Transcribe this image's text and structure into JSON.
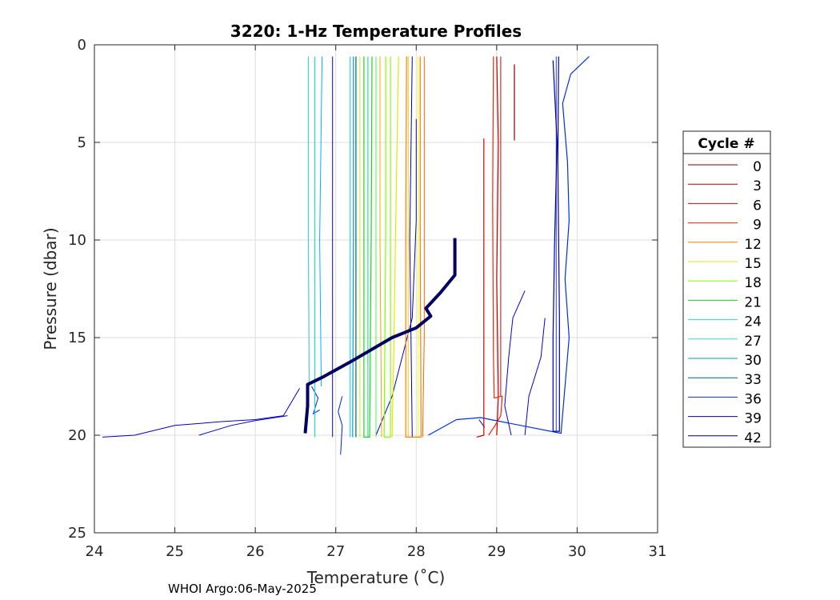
{
  "chart_data": {
    "type": "line",
    "title": "3220: 1-Hz Temperature Profiles",
    "xlabel": "Temperature (˚C)",
    "ylabel": "Pressure (dbar)",
    "xlim": [
      24,
      31
    ],
    "ylim": [
      0,
      25
    ],
    "y_reversed": true,
    "x_ticks": [
      "24",
      "25",
      "26",
      "27",
      "28",
      "29",
      "30",
      "31"
    ],
    "y_ticks": [
      "0",
      "5",
      "10",
      "15",
      "20",
      "25"
    ],
    "grid": true,
    "legend_title": "Cycle #",
    "legend_position": "right",
    "footer": "WHOI Argo:06-May-2025",
    "series": [
      {
        "name": "0",
        "color": "#800000",
        "points": [
          [
            29.22,
            1.0
          ],
          [
            29.22,
            4.9
          ]
        ]
      },
      {
        "name": "3",
        "color": "#b00000",
        "points": [
          [
            29.0,
            0.6
          ],
          [
            29.02,
            5
          ],
          [
            29.0,
            12
          ],
          [
            29.02,
            18
          ],
          [
            29.0,
            20
          ]
        ]
      },
      {
        "name": "6",
        "color": "#d40000",
        "points": [
          [
            28.84,
            4.8
          ],
          [
            28.84,
            12
          ],
          [
            28.84,
            20
          ],
          [
            28.75,
            20.1
          ]
        ]
      },
      {
        "name": "9",
        "color": "#ff2000",
        "points": [
          [
            28.96,
            0.6
          ],
          [
            28.95,
            8
          ],
          [
            28.96,
            16
          ],
          [
            28.97,
            18.1
          ],
          [
            29.07,
            18.0
          ],
          [
            29.05,
            19.0
          ],
          [
            28.98,
            19.5
          ],
          [
            28.9,
            20
          ]
        ]
      },
      {
        "name": "12",
        "color": "#ff8000",
        "points": [
          [
            28.05,
            0.6
          ],
          [
            28.05,
            10
          ],
          [
            28.06,
            20.1
          ],
          [
            27.87,
            20.1
          ],
          [
            27.87,
            10
          ],
          [
            27.88,
            0.6
          ]
        ]
      },
      {
        "name": "15",
        "color": "#e6e600",
        "points": [
          [
            27.78,
            0.6
          ],
          [
            27.75,
            8
          ],
          [
            27.72,
            16
          ],
          [
            27.7,
            20.1
          ]
        ]
      },
      {
        "name": "18",
        "color": "#80ff00",
        "points": [
          [
            27.62,
            0.6
          ],
          [
            27.62,
            10
          ],
          [
            27.6,
            20.1
          ],
          [
            27.68,
            20.1
          ],
          [
            27.68,
            0.6
          ]
        ]
      },
      {
        "name": "21",
        "color": "#20d020",
        "points": [
          [
            27.45,
            0.6
          ],
          [
            27.44,
            10
          ],
          [
            27.42,
            20.1
          ],
          [
            27.35,
            20.1
          ],
          [
            27.35,
            0.6
          ]
        ]
      },
      {
        "name": "24",
        "color": "#20e0c0",
        "points": [
          [
            26.74,
            0.6
          ],
          [
            26.74,
            10
          ],
          [
            26.74,
            20.1
          ]
        ]
      },
      {
        "name": "27",
        "color": "#40d0e0",
        "points": [
          [
            26.66,
            0.6
          ],
          [
            26.66,
            10
          ],
          [
            26.67,
            17.5
          ]
        ]
      },
      {
        "name": "30",
        "color": "#00a0c0",
        "points": [
          [
            27.22,
            0.6
          ],
          [
            27.22,
            10
          ],
          [
            27.21,
            20.1
          ]
        ]
      },
      {
        "name": "33",
        "color": "#006080",
        "points": [
          [
            27.25,
            0.6
          ],
          [
            27.25,
            10
          ],
          [
            27.25,
            20.1
          ]
        ]
      },
      {
        "name": "36",
        "color": "#0030e0",
        "points": [
          [
            30.15,
            0.6
          ],
          [
            29.92,
            1.5
          ],
          [
            29.82,
            3
          ],
          [
            29.88,
            6
          ],
          [
            29.9,
            9
          ],
          [
            29.85,
            12
          ],
          [
            29.9,
            15
          ],
          [
            29.8,
            19.9
          ],
          [
            28.8,
            19.1
          ],
          [
            28.5,
            19.2
          ],
          [
            28.15,
            20
          ]
        ]
      },
      {
        "name": "39",
        "color": "#0000a0",
        "points": [
          [
            29.7,
            0.8
          ],
          [
            29.75,
            5
          ],
          [
            29.72,
            10
          ],
          [
            29.7,
            15
          ],
          [
            29.7,
            19.8
          ],
          [
            29.78,
            19.8
          ],
          [
            29.78,
            14
          ],
          [
            29.76,
            6
          ],
          [
            29.77,
            0.6
          ]
        ]
      },
      {
        "name": "42",
        "color": "#000060",
        "points": [
          [
            28.48,
            9.9
          ],
          [
            28.48,
            11.8
          ],
          [
            28.3,
            12.7
          ],
          [
            28.12,
            13.5
          ],
          [
            28.18,
            13.9
          ],
          [
            28.0,
            14.5
          ],
          [
            27.7,
            15.0
          ],
          [
            27.2,
            16.2
          ],
          [
            26.85,
            17.0
          ],
          [
            26.65,
            17.4
          ],
          [
            26.65,
            18.5
          ],
          [
            26.62,
            19.9
          ]
        ]
      }
    ],
    "extra_traces": [
      {
        "color": "#0000cc",
        "points": [
          [
            24.1,
            20.1
          ],
          [
            24.5,
            20.0
          ],
          [
            25.0,
            19.5
          ],
          [
            25.6,
            19.3
          ],
          [
            26.0,
            19.2
          ],
          [
            26.35,
            19.0
          ],
          [
            26.55,
            17.6
          ]
        ]
      },
      {
        "color": "#0000cc",
        "points": [
          [
            25.3,
            20.0
          ],
          [
            25.7,
            19.5
          ],
          [
            26.0,
            19.25
          ],
          [
            26.4,
            19.0
          ]
        ]
      },
      {
        "color": "#0020ff",
        "points": [
          [
            27.08,
            18.0
          ],
          [
            27.03,
            18.8
          ],
          [
            27.08,
            19.5
          ],
          [
            27.06,
            21.0
          ]
        ]
      },
      {
        "color": "#0020ff",
        "points": [
          [
            26.7,
            17.5
          ],
          [
            26.78,
            18.1
          ],
          [
            26.72,
            18.9
          ],
          [
            26.8,
            18.7
          ]
        ]
      },
      {
        "color": "#0000dd",
        "points": [
          [
            28.0,
            3.8
          ],
          [
            28.0,
            9
          ],
          [
            27.95,
            14
          ],
          [
            27.7,
            18
          ],
          [
            27.5,
            20
          ]
        ]
      },
      {
        "color": "#0000dd",
        "points": [
          [
            29.35,
            12.6
          ],
          [
            29.2,
            14
          ],
          [
            29.15,
            16
          ],
          [
            29.1,
            18.5
          ],
          [
            29.18,
            20
          ]
        ]
      },
      {
        "color": "#0000dd",
        "points": [
          [
            29.6,
            14
          ],
          [
            29.55,
            16
          ],
          [
            29.4,
            18.0
          ],
          [
            29.35,
            20
          ]
        ]
      },
      {
        "color": "#0000cc",
        "points": [
          [
            26.96,
            0.6
          ],
          [
            26.96,
            20.1
          ]
        ]
      },
      {
        "color": "#00b0ff",
        "points": [
          [
            26.83,
            0.6
          ],
          [
            26.8,
            10
          ],
          [
            26.82,
            17.5
          ]
        ]
      },
      {
        "color": "#0000aa",
        "points": [
          [
            27.95,
            0.6
          ],
          [
            27.92,
            10
          ],
          [
            27.95,
            20.1
          ]
        ]
      },
      {
        "color": "#ffa000",
        "points": [
          [
            27.55,
            0.6
          ],
          [
            27.55,
            10
          ],
          [
            27.57,
            20.1
          ]
        ]
      },
      {
        "color": "#ffc000",
        "points": [
          [
            27.9,
            0.6
          ],
          [
            27.9,
            20.1
          ]
        ]
      },
      {
        "color": "#ff6000",
        "points": [
          [
            28.1,
            0.6
          ],
          [
            28.1,
            15
          ],
          [
            28.08,
            20.1
          ]
        ]
      },
      {
        "color": "#c0ff00",
        "points": [
          [
            27.3,
            0.6
          ],
          [
            27.3,
            20.1
          ]
        ]
      },
      {
        "color": "#40ff40",
        "points": [
          [
            27.5,
            0.6
          ],
          [
            27.5,
            20.1
          ]
        ]
      },
      {
        "color": "#ffff00",
        "points": [
          [
            28.02,
            0.6
          ],
          [
            28.02,
            20.1
          ]
        ]
      },
      {
        "color": "#00e080",
        "points": [
          [
            27.4,
            0.6
          ],
          [
            27.4,
            20.1
          ]
        ]
      },
      {
        "color": "#00c0ff",
        "points": [
          [
            27.18,
            0.6
          ],
          [
            27.18,
            20.1
          ]
        ]
      },
      {
        "color": "#2040ff",
        "points": [
          [
            29.74,
            0.6
          ],
          [
            29.74,
            19.8
          ]
        ]
      },
      {
        "color": "#d00000",
        "points": [
          [
            29.05,
            0.6
          ],
          [
            29.05,
            18
          ]
        ]
      },
      {
        "color": "#0000cc",
        "points": [
          [
            28.78,
            19.2
          ],
          [
            28.85,
            19.6
          ]
        ]
      }
    ]
  }
}
